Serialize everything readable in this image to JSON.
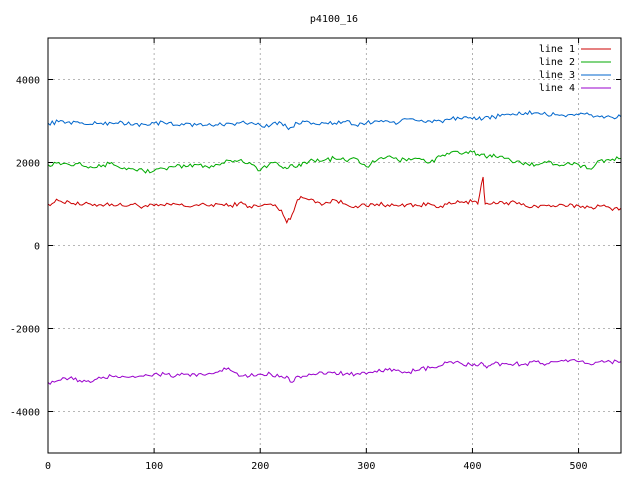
{
  "chart_data": {
    "type": "line",
    "title": "p4100_16",
    "xlabel": "",
    "ylabel": "",
    "xlim": [
      0,
      540
    ],
    "ylim": [
      -5000,
      5000
    ],
    "xticks": [
      0,
      100,
      200,
      300,
      400,
      500
    ],
    "yticks": [
      -4000,
      -2000,
      0,
      2000,
      4000
    ],
    "grid": true,
    "legend_position": "top-right",
    "x": [
      0,
      10,
      20,
      30,
      40,
      50,
      60,
      70,
      80,
      90,
      100,
      110,
      120,
      130,
      140,
      150,
      160,
      170,
      180,
      190,
      200,
      210,
      220,
      225,
      230,
      235,
      240,
      250,
      260,
      270,
      280,
      290,
      300,
      310,
      320,
      330,
      340,
      350,
      360,
      370,
      380,
      390,
      400,
      405,
      410,
      412,
      415,
      420,
      430,
      440,
      450,
      460,
      470,
      480,
      490,
      500,
      510,
      520,
      530,
      540
    ],
    "series": [
      {
        "name": "line 1",
        "color": "#cc0000",
        "values": [
          1000,
          1080,
          1050,
          980,
          1000,
          980,
          1000,
          960,
          990,
          940,
          960,
          960,
          1000,
          940,
          980,
          960,
          1000,
          950,
          1020,
          940,
          950,
          1000,
          850,
          550,
          750,
          1100,
          1150,
          1100,
          1000,
          1100,
          1000,
          950,
          950,
          1000,
          980,
          950,
          1000,
          960,
          1000,
          950,
          1000,
          1050,
          1050,
          1000,
          1650,
          1000,
          1000,
          1050,
          1000,
          1050,
          950,
          950,
          960,
          950,
          950,
          960,
          920,
          950,
          900,
          900
        ]
      },
      {
        "name": "line 2",
        "color": "#00aa00",
        "values": [
          1950,
          2000,
          1950,
          2000,
          1900,
          1900,
          2000,
          1850,
          1850,
          1800,
          1800,
          1850,
          1900,
          1900,
          1950,
          1900,
          1950,
          2050,
          2050,
          2000,
          1800,
          2000,
          1900,
          1850,
          1950,
          1900,
          2000,
          2050,
          2050,
          2100,
          2050,
          2100,
          1900,
          2050,
          2150,
          2050,
          2100,
          2100,
          2000,
          2150,
          2250,
          2200,
          2250,
          2200,
          2200,
          2150,
          2150,
          2200,
          2100,
          2000,
          2000,
          1950,
          2000,
          1950,
          2000,
          1950,
          1850,
          2050,
          2050,
          2100
        ]
      },
      {
        "name": "line 3",
        "color": "#0066cc",
        "values": [
          2950,
          2980,
          2980,
          2950,
          2920,
          2950,
          2950,
          2970,
          2900,
          2920,
          2950,
          2950,
          2900,
          2950,
          2900,
          2900,
          2900,
          2950,
          2950,
          2950,
          2900,
          2900,
          2950,
          2850,
          2850,
          2950,
          3000,
          2950,
          2950,
          2950,
          2980,
          2900,
          2950,
          3000,
          3000,
          2950,
          3050,
          3000,
          3000,
          3000,
          3050,
          3050,
          3050,
          3050,
          3050,
          3100,
          3100,
          3100,
          3150,
          3150,
          3200,
          3200,
          3150,
          3150,
          3150,
          3150,
          3150,
          3100,
          3100,
          3100
        ]
      },
      {
        "name": "line 4",
        "color": "#9900cc",
        "values": [
          -3300,
          -3250,
          -3200,
          -3250,
          -3300,
          -3200,
          -3150,
          -3150,
          -3150,
          -3150,
          -3100,
          -3100,
          -3150,
          -3100,
          -3150,
          -3100,
          -3050,
          -2950,
          -3150,
          -3150,
          -3100,
          -3100,
          -3150,
          -3150,
          -3300,
          -3150,
          -3150,
          -3100,
          -3100,
          -3050,
          -3100,
          -3100,
          -3100,
          -3050,
          -3000,
          -3000,
          -3050,
          -3000,
          -2950,
          -2900,
          -2800,
          -2850,
          -2900,
          -2900,
          -2850,
          -2900,
          -2900,
          -2850,
          -2850,
          -2850,
          -2850,
          -2800,
          -2850,
          -2800,
          -2800,
          -2800,
          -2850,
          -2800,
          -2800,
          -2800
        ]
      }
    ]
  }
}
